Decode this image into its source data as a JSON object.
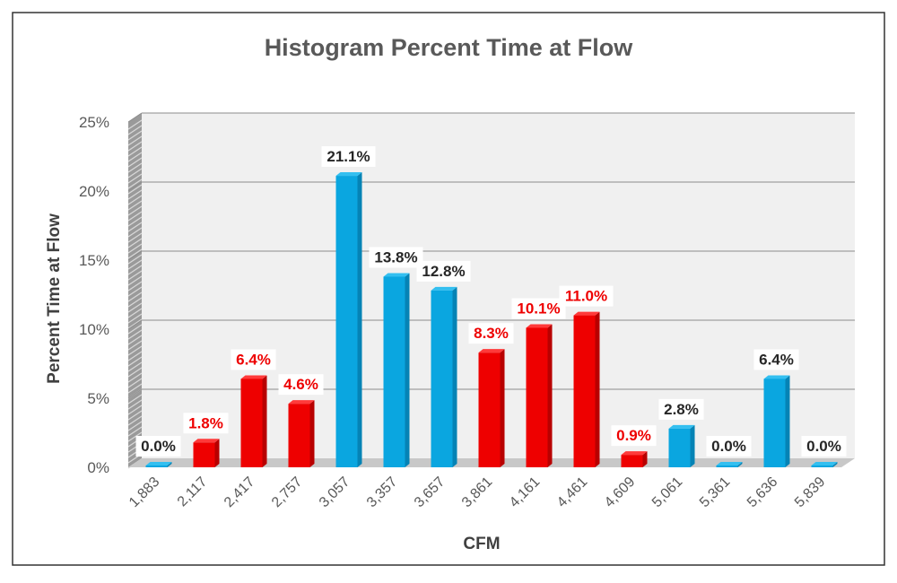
{
  "chart_data": {
    "type": "bar",
    "title": "Histogram Percent Time at Flow",
    "xlabel": "CFM",
    "ylabel": "Percent Time at Flow",
    "ylim": [
      0,
      25
    ],
    "yticks": [
      0,
      5,
      10,
      15,
      20,
      25
    ],
    "ytick_labels": [
      "0%",
      "5%",
      "10%",
      "15%",
      "20%",
      "25%"
    ],
    "grid": true,
    "legend": "none",
    "categories": [
      "1,883",
      "2,117",
      "2,417",
      "2,757",
      "3,057",
      "3,357",
      "3,657",
      "3,861",
      "4,161",
      "4,461",
      "4,609",
      "5,061",
      "5,361",
      "5,636",
      "5,839"
    ],
    "values": [
      0.0,
      1.8,
      6.4,
      4.6,
      21.1,
      13.8,
      12.8,
      8.3,
      10.1,
      11.0,
      0.9,
      2.8,
      0.0,
      6.4,
      0.0
    ],
    "data_labels": [
      "0.0%",
      "1.8%",
      "6.4%",
      "4.6%",
      "21.1%",
      "13.8%",
      "12.8%",
      "8.3%",
      "10.1%",
      "11.0%",
      "0.9%",
      "2.8%",
      "0.0%",
      "6.4%",
      "0.0%"
    ],
    "bar_colors": [
      "blue",
      "red",
      "red",
      "red",
      "blue",
      "blue",
      "blue",
      "red",
      "red",
      "red",
      "red",
      "blue",
      "blue",
      "blue",
      "blue"
    ],
    "colors": {
      "blue_face": "#0aa6e0",
      "blue_side": "#0583b5",
      "blue_top": "#33bff0",
      "red_face": "#ee0000",
      "red_side": "#b80000",
      "red_top": "#ff3a3a",
      "red_label": "#ee0000",
      "dark_label": "#262626",
      "title_color": "#595959",
      "axis_label_color": "#404040",
      "tick_color": "#595959",
      "plot_bg": "#f0f0f0",
      "floor": "#c8c8c8",
      "gridline": "#8c8c8c",
      "frame": "#333333"
    }
  }
}
